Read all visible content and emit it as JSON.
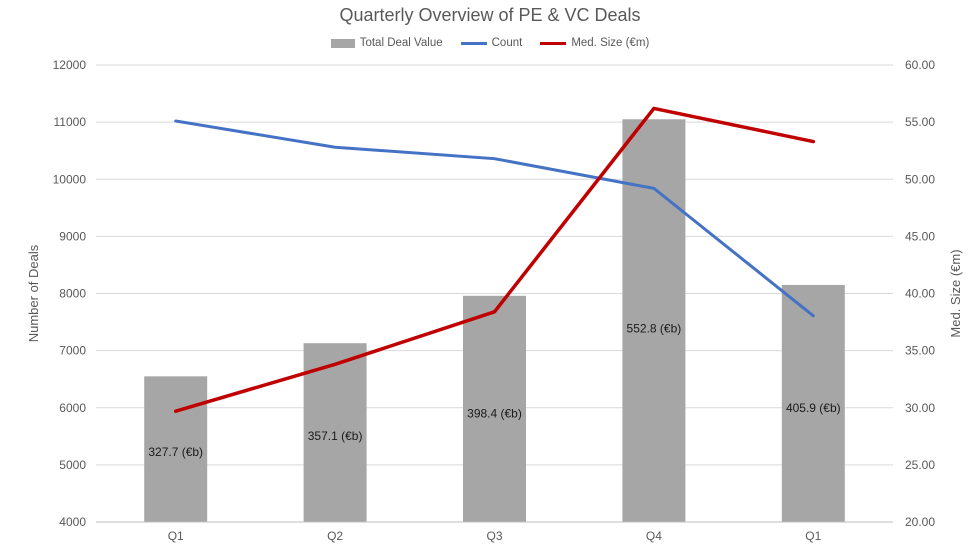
{
  "chart_data": {
    "type": "bar",
    "title": "Quarterly Overview of PE & VC Deals",
    "categories": [
      "Q1",
      "Q2",
      "Q3",
      "Q4",
      "Q1"
    ],
    "ylabel": "Number of Deals",
    "y2label": "Med. Size (€m)",
    "ylim": [
      4000,
      12000
    ],
    "y2lim": [
      20,
      60
    ],
    "yticks": [
      "4000",
      "5000",
      "6000",
      "7000",
      "8000",
      "9000",
      "10000",
      "11000",
      "12000"
    ],
    "y2ticks": [
      "20.00",
      "25.00",
      "30.00",
      "35.00",
      "40.00",
      "45.00",
      "50.00",
      "55.00",
      "60.00"
    ],
    "grid": true,
    "legend_position": "top",
    "series": [
      {
        "name": "Total Deal Value",
        "type": "bar",
        "axis": "left",
        "color": "#a6a6a6",
        "values": [
          6550,
          7130,
          7960,
          11050,
          8150
        ],
        "labels": [
          "327.7 (€b)",
          "357.1 (€b)",
          "398.4 (€b)",
          "552.8 (€b)",
          "405.9 (€b)"
        ]
      },
      {
        "name": "Count",
        "type": "line",
        "axis": "left",
        "color": "#4472c4",
        "values": [
          11020,
          10560,
          10360,
          9840,
          7610
        ]
      },
      {
        "name": "Med. Size (€m)",
        "type": "line",
        "axis": "right",
        "color": "#c00000",
        "values": [
          29.7,
          33.8,
          38.4,
          56.2,
          53.3
        ]
      }
    ]
  }
}
